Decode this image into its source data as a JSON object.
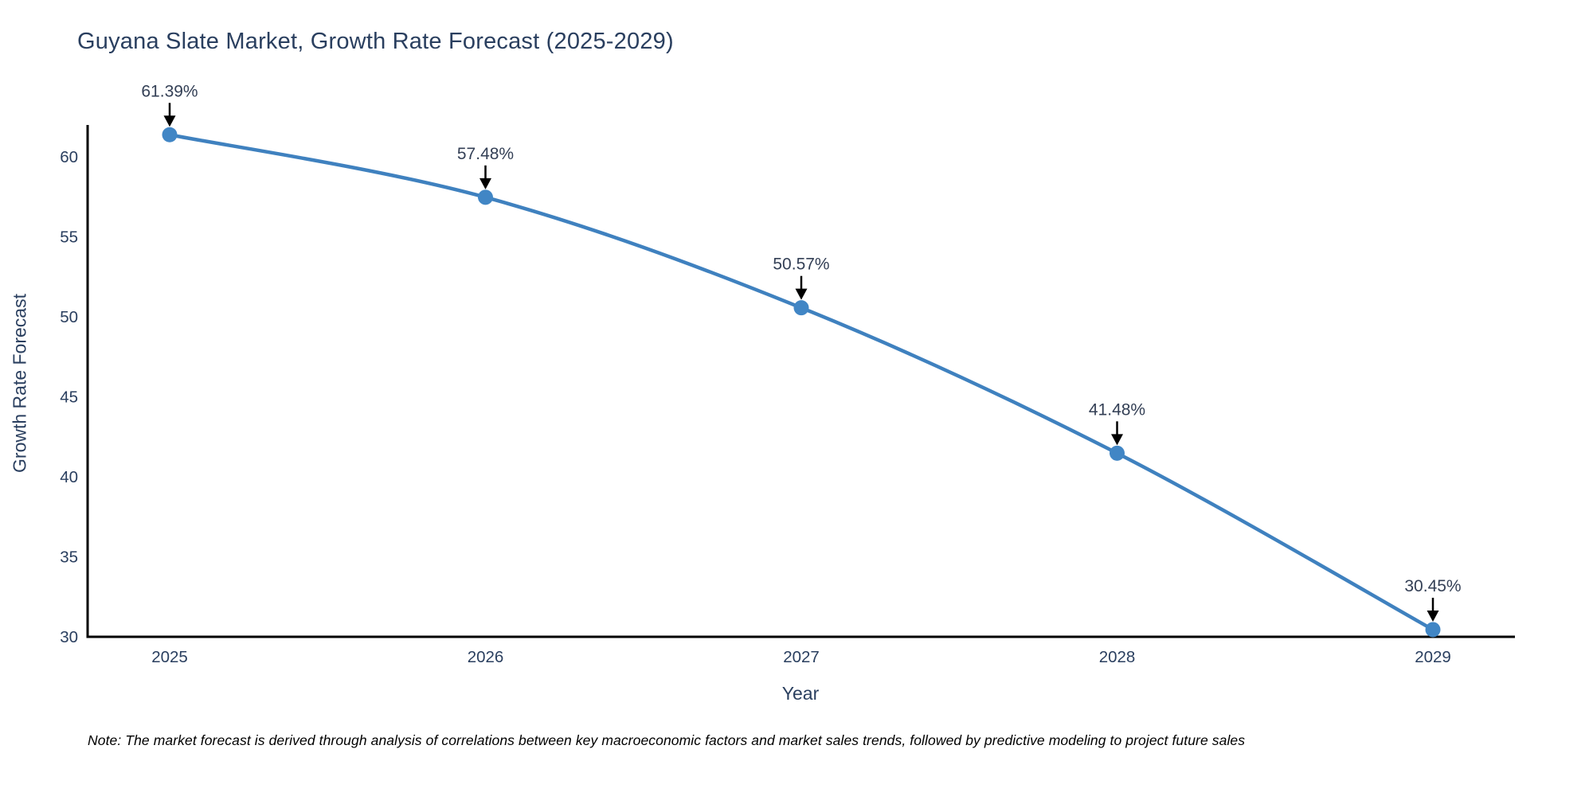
{
  "chart_data": {
    "type": "line",
    "title": "Guyana Slate Market, Growth Rate Forecast (2025-2029)",
    "xlabel": "Year",
    "ylabel": "Growth Rate Forecast",
    "x": [
      "2025",
      "2026",
      "2027",
      "2028",
      "2029"
    ],
    "series": [
      {
        "name": "Growth Rate Forecast",
        "values": [
          61.39,
          57.48,
          50.57,
          41.48,
          30.45
        ],
        "point_labels": [
          "61.39%",
          "57.48%",
          "50.57%",
          "41.48%",
          "30.45%"
        ]
      }
    ],
    "yticks": [
      30,
      35,
      40,
      45,
      50,
      55,
      60
    ],
    "ylim": [
      30,
      62
    ],
    "grid": false,
    "legend_position": "none",
    "line_shape": "spline",
    "line_color": "#3f81bf",
    "marker_color": "#4186c5",
    "axis_color": "#000000",
    "text_color": "#2a3f5f",
    "annotation_text_color": "#333f55",
    "annotation_arrow_color": "#000000",
    "note_color": "#000000",
    "note": "Note: The market forecast is derived through analysis of correlations between key macroeconomic factors and market sales trends, followed by predictive modeling to project future sales"
  }
}
